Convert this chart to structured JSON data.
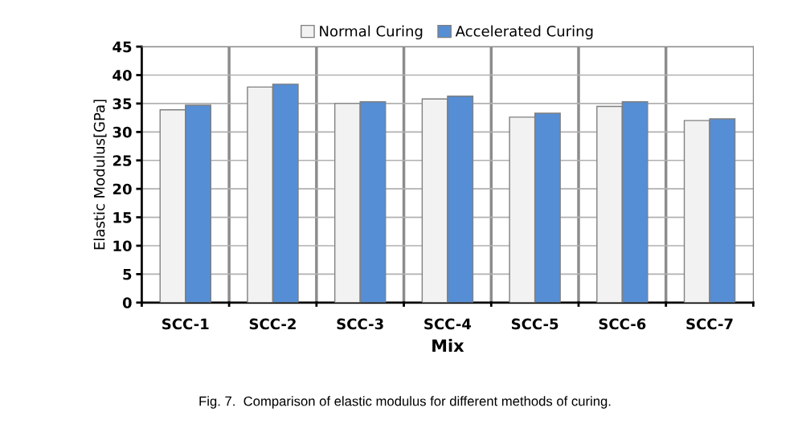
{
  "chart_data": {
    "type": "bar",
    "categories": [
      "SCC-1",
      "SCC-2",
      "SCC-3",
      "SCC-4",
      "SCC-5",
      "SCC-6",
      "SCC-7"
    ],
    "series": [
      {
        "name": "Normal Curing",
        "color": "#f2f2f2",
        "values": [
          33.9,
          37.9,
          35.0,
          35.8,
          32.6,
          34.5,
          32.0
        ]
      },
      {
        "name": "Accelerated Curing",
        "color": "#558ed5",
        "values": [
          34.7,
          38.4,
          35.3,
          36.3,
          33.3,
          35.3,
          32.3
        ]
      }
    ],
    "xlabel": "Mix",
    "ylabel": "Elastic Modulus[GPa]",
    "ylim": [
      0,
      45
    ],
    "yticks": [
      0,
      5,
      10,
      15,
      20,
      25,
      30,
      35,
      40,
      45
    ],
    "grid": true,
    "legend": "top",
    "annotations": [
      "Fig. 7.  Comparison of elastic modulus for different methods of curing."
    ]
  }
}
